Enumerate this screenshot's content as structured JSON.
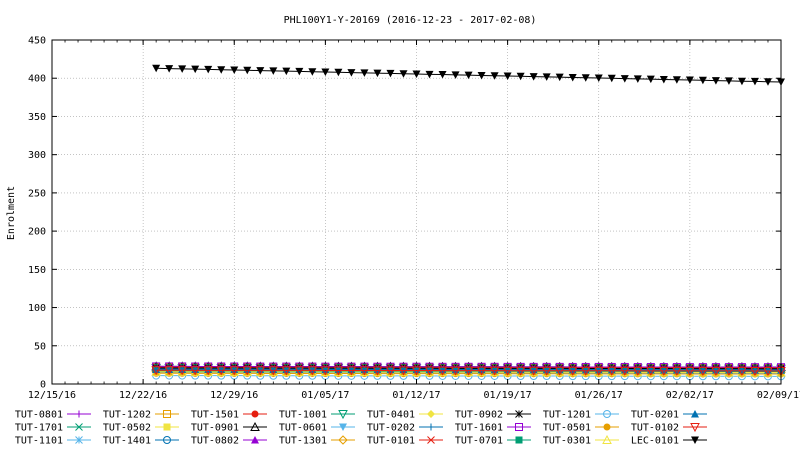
{
  "chart_data": {
    "type": "line",
    "title": "PHL100Y1-Y-20169 (2016-12-23 - 2017-02-08)",
    "xlabel": "",
    "ylabel": "Enrolment",
    "x_axis": {
      "min": "2016-12-15",
      "max": "2017-02-09",
      "ticks": [
        {
          "date": "2016-12-15",
          "label": "12/15/16"
        },
        {
          "date": "2016-12-22",
          "label": "12/22/16"
        },
        {
          "date": "2016-12-29",
          "label": "12/29/16"
        },
        {
          "date": "2017-01-05",
          "label": "01/05/17"
        },
        {
          "date": "2017-01-12",
          "label": "01/12/17"
        },
        {
          "date": "2017-01-19",
          "label": "01/19/17"
        },
        {
          "date": "2017-01-26",
          "label": "01/26/17"
        },
        {
          "date": "2017-02-02",
          "label": "02/02/17"
        },
        {
          "date": "2017-02-09",
          "label": "02/09/17"
        }
      ]
    },
    "y_axis": {
      "min": 0,
      "max": 450,
      "ticks": [
        0,
        50,
        100,
        150,
        200,
        250,
        300,
        350,
        400,
        450
      ]
    },
    "grid": true,
    "legend_position": "bottom",
    "x_start": "2016-12-23",
    "series": [
      {
        "name": "TUT-0801",
        "color": "#9400d3",
        "marker": "plus",
        "y_start": 18,
        "y_end": 17
      },
      {
        "name": "TUT-1701",
        "color": "#009e73",
        "marker": "cross",
        "y_start": 20,
        "y_end": 19
      },
      {
        "name": "TUT-1101",
        "color": "#56b4e9",
        "marker": "asterisk",
        "y_start": 15,
        "y_end": 14
      },
      {
        "name": "TUT-1202",
        "color": "#e69f00",
        "marker": "square-open",
        "y_start": 22,
        "y_end": 21
      },
      {
        "name": "TUT-0502",
        "color": "#f0e442",
        "marker": "square-filled",
        "y_start": 20,
        "y_end": 19
      },
      {
        "name": "TUT-1401",
        "color": "#0072b2",
        "marker": "circle-open",
        "y_start": 18,
        "y_end": 17
      },
      {
        "name": "TUT-1501",
        "color": "#e51e10",
        "marker": "circle-filled",
        "y_start": 21,
        "y_end": 20
      },
      {
        "name": "TUT-0901",
        "color": "#000000",
        "marker": "triangle-up-open",
        "y_start": 23,
        "y_end": 22
      },
      {
        "name": "TUT-0802",
        "color": "#9400d3",
        "marker": "triangle-up-filled",
        "y_start": 19,
        "y_end": 18
      },
      {
        "name": "TUT-1001",
        "color": "#009e73",
        "marker": "triangle-down-open",
        "y_start": 21,
        "y_end": 20
      },
      {
        "name": "TUT-0601",
        "color": "#56b4e9",
        "marker": "triangle-down-filled",
        "y_start": 17,
        "y_end": 16
      },
      {
        "name": "TUT-1301",
        "color": "#e69f00",
        "marker": "diamond-open",
        "y_start": 16,
        "y_end": 15
      },
      {
        "name": "TUT-0401",
        "color": "#f0e442",
        "marker": "diamond-filled",
        "y_start": 19,
        "y_end": 18
      },
      {
        "name": "TUT-0202",
        "color": "#0072b2",
        "marker": "plus",
        "y_start": 20,
        "y_end": 19
      },
      {
        "name": "TUT-0101",
        "color": "#e51e10",
        "marker": "cross",
        "y_start": 22,
        "y_end": 21
      },
      {
        "name": "TUT-0902",
        "color": "#000000",
        "marker": "asterisk",
        "y_start": 21,
        "y_end": 20
      },
      {
        "name": "TUT-1601",
        "color": "#9400d3",
        "marker": "square-open",
        "y_start": 23,
        "y_end": 22
      },
      {
        "name": "TUT-0701",
        "color": "#009e73",
        "marker": "square-filled",
        "y_start": 17,
        "y_end": 16
      },
      {
        "name": "TUT-1201",
        "color": "#56b4e9",
        "marker": "circle-open",
        "y_start": 11,
        "y_end": 10
      },
      {
        "name": "TUT-0501",
        "color": "#e69f00",
        "marker": "circle-filled",
        "y_start": 14,
        "y_end": 13
      },
      {
        "name": "TUT-0301",
        "color": "#f0e442",
        "marker": "triangle-up-open",
        "y_start": 16,
        "y_end": 15
      },
      {
        "name": "TUT-0201",
        "color": "#0072b2",
        "marker": "triangle-up-filled",
        "y_start": 19,
        "y_end": 18
      },
      {
        "name": "TUT-0102",
        "color": "#e51e10",
        "marker": "triangle-down-open",
        "y_start": 18,
        "y_end": 17
      },
      {
        "name": "LEC-0101",
        "color": "#000000",
        "marker": "triangle-down-filled",
        "y_start": 413,
        "y_end": 395
      }
    ]
  }
}
